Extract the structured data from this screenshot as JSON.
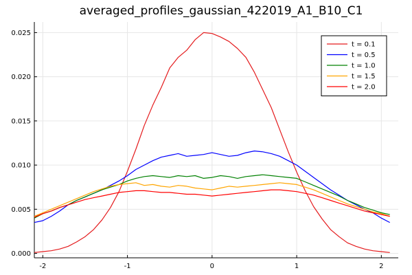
{
  "chart_data": {
    "type": "line",
    "title": "averaged_profiles_gaussian_422019_A1_B10_C1",
    "xlabel": "",
    "ylabel": "",
    "xlim": [
      -2.1,
      2.2
    ],
    "ylim": [
      -0.0005,
      0.0262
    ],
    "x_ticks": [
      -2,
      -1,
      0,
      1,
      2
    ],
    "x_tick_labels": [
      "-2",
      "-1",
      "0",
      "1",
      "2"
    ],
    "y_ticks": [
      0.0,
      0.005,
      0.01,
      0.015,
      0.02,
      0.025
    ],
    "y_tick_labels": [
      "0.000",
      "0.005",
      "0.010",
      "0.015",
      "0.020",
      "0.025"
    ],
    "grid": true,
    "legend_position": "top-right",
    "x": [
      -2.1,
      -2.0,
      -1.9,
      -1.8,
      -1.7,
      -1.6,
      -1.5,
      -1.4,
      -1.3,
      -1.2,
      -1.1,
      -1.0,
      -0.9,
      -0.8,
      -0.7,
      -0.6,
      -0.5,
      -0.4,
      -0.3,
      -0.2,
      -0.1,
      0.0,
      0.1,
      0.2,
      0.3,
      0.4,
      0.5,
      0.6,
      0.7,
      0.8,
      0.9,
      1.0,
      1.1,
      1.2,
      1.3,
      1.4,
      1.5,
      1.6,
      1.7,
      1.8,
      1.9,
      2.0,
      2.1
    ],
    "series": [
      {
        "name": "t = 0.1",
        "color": "#e41a1c",
        "values": [
          0.0001,
          0.0002,
          0.0003,
          0.0005,
          0.0008,
          0.0013,
          0.0019,
          0.0027,
          0.0038,
          0.0052,
          0.007,
          0.0093,
          0.0118,
          0.0145,
          0.0168,
          0.0188,
          0.021,
          0.0222,
          0.023,
          0.0242,
          0.025,
          0.0249,
          0.0245,
          0.024,
          0.0232,
          0.0222,
          0.0205,
          0.0185,
          0.0165,
          0.014,
          0.0115,
          0.0092,
          0.0071,
          0.0053,
          0.0039,
          0.0027,
          0.0019,
          0.0012,
          0.0008,
          0.0005,
          0.0003,
          0.0002,
          0.0001
        ]
      },
      {
        "name": "t = 0.5",
        "color": "#0000ff",
        "values": [
          0.0035,
          0.0037,
          0.0042,
          0.0048,
          0.0055,
          0.006,
          0.0064,
          0.0068,
          0.0072,
          0.0077,
          0.0082,
          0.0088,
          0.0095,
          0.01,
          0.0105,
          0.0109,
          0.0111,
          0.0113,
          0.011,
          0.0111,
          0.0112,
          0.0114,
          0.0112,
          0.011,
          0.0111,
          0.0114,
          0.0116,
          0.0115,
          0.0113,
          0.011,
          0.0105,
          0.01,
          0.0093,
          0.0086,
          0.0079,
          0.0072,
          0.0066,
          0.006,
          0.0055,
          0.005,
          0.0046,
          0.004,
          0.0035
        ]
      },
      {
        "name": "t = 1.0",
        "color": "#008000",
        "values": [
          0.004,
          0.0045,
          0.0048,
          0.0052,
          0.0055,
          0.006,
          0.0064,
          0.0068,
          0.0072,
          0.0075,
          0.0078,
          0.0082,
          0.0085,
          0.0087,
          0.0088,
          0.0087,
          0.0086,
          0.0088,
          0.0087,
          0.0088,
          0.0085,
          0.0086,
          0.0088,
          0.0087,
          0.0085,
          0.0087,
          0.0088,
          0.0089,
          0.0088,
          0.0087,
          0.0086,
          0.0085,
          0.0081,
          0.0077,
          0.0073,
          0.0069,
          0.0065,
          0.006,
          0.0056,
          0.0052,
          0.0049,
          0.0046,
          0.0044
        ]
      },
      {
        "name": "t = 1.5",
        "color": "#ffa500",
        "values": [
          0.0042,
          0.0046,
          0.005,
          0.0054,
          0.0058,
          0.0062,
          0.0066,
          0.007,
          0.0073,
          0.0076,
          0.0078,
          0.0079,
          0.008,
          0.0077,
          0.0078,
          0.0076,
          0.0075,
          0.0077,
          0.0076,
          0.0074,
          0.0073,
          0.0072,
          0.0074,
          0.0076,
          0.0075,
          0.0076,
          0.0077,
          0.0078,
          0.0079,
          0.008,
          0.0079,
          0.0078,
          0.0075,
          0.0072,
          0.0068,
          0.0064,
          0.006,
          0.0056,
          0.0053,
          0.005,
          0.0047,
          0.0045,
          0.0042
        ]
      },
      {
        "name": "t = 2.0",
        "color": "#ff0000",
        "values": [
          0.0041,
          0.0045,
          0.0048,
          0.0052,
          0.0055,
          0.0058,
          0.0061,
          0.0063,
          0.0065,
          0.0067,
          0.0069,
          0.007,
          0.0071,
          0.0071,
          0.007,
          0.0069,
          0.0069,
          0.0068,
          0.0067,
          0.0067,
          0.0066,
          0.0065,
          0.0066,
          0.0067,
          0.0068,
          0.0069,
          0.007,
          0.0071,
          0.0072,
          0.0072,
          0.0071,
          0.007,
          0.0068,
          0.0066,
          0.0063,
          0.006,
          0.0057,
          0.0054,
          0.0051,
          0.0048,
          0.0046,
          0.0044,
          0.0042
        ]
      }
    ]
  }
}
